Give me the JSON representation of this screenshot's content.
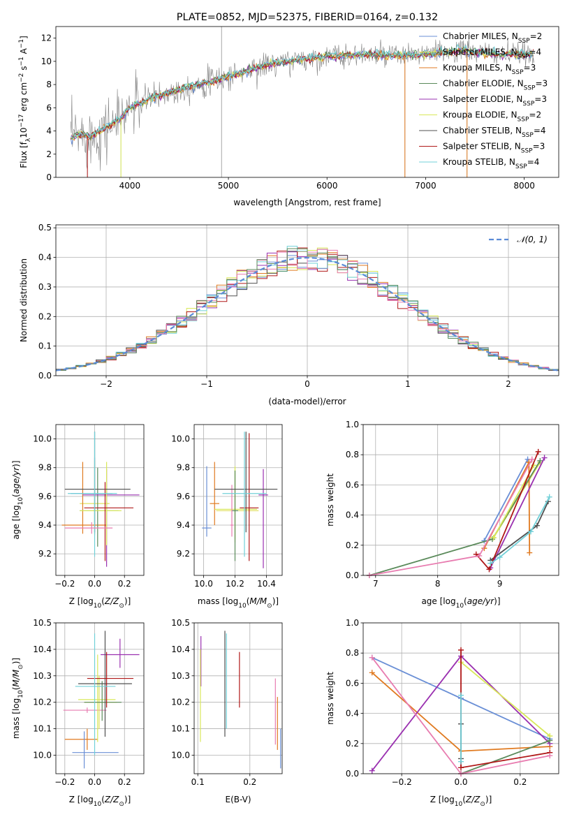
{
  "page_title": "PLATE=0852, MJD=52375, FIBERID=0164, z=0.132",
  "colors": {
    "Chabrier MILES": "#6a8fd6",
    "Salpeter MILES": "#e0e060",
    "Kroupa MILES": "#e07a20",
    "Chabrier ELODIE": "#5a8a5a",
    "Salpeter ELODIE": "#9a30b0",
    "Kroupa ELODIE": "#d8e858",
    "Chabrier STELIB": "#505050",
    "Salpeter STELIB": "#b01818",
    "Kroupa STELIB": "#70d0d8",
    "pink": "#e87cb0",
    "gray_spectrum": "#808080",
    "normal_curve": "#5b8bd6"
  },
  "chart_data": [
    {
      "id": "spectrum",
      "type": "line",
      "title": "PLATE=0852, MJD=52375, FIBERID=0164, z=0.132",
      "xlabel": "wavelength [Angstrom, rest frame]",
      "ylabel": "Flux [f_λ 10^-17 erg cm^-2 s^-1 A^-1]",
      "xlim": [
        3250,
        8350
      ],
      "ylim": [
        0,
        13
      ],
      "xticks": [
        4000,
        5000,
        6000,
        7000,
        8000
      ],
      "yticks": [
        0,
        2,
        4,
        6,
        8,
        10,
        12
      ],
      "grid": false,
      "legend_position": "top-right",
      "legend": [
        "Chabrier MILES, N_SSP=2",
        "Salpeter MILES, N_SSP=4",
        "Kroupa MILES, N_SSP=3",
        "Chabrier ELODIE, N_SSP=3",
        "Salpeter ELODIE, N_SSP=3",
        "Kroupa ELODIE, N_SSP=2",
        "Chabrier STELIB, N_SSP=4",
        "Salpeter STELIB, N_SSP=3",
        "Kroupa STELIB, N_SSP=4"
      ],
      "continuum": {
        "x": [
          3400,
          3500,
          3600,
          3700,
          3800,
          3900,
          4000,
          4200,
          4400,
          4600,
          4800,
          5000,
          5200,
          5400,
          5600,
          5800,
          6000,
          6200,
          6400,
          6600,
          6800,
          7000,
          7200,
          7400,
          7600,
          7800,
          8000,
          8100
        ],
        "y": [
          3.4,
          3.7,
          3.5,
          4.0,
          4.5,
          5.0,
          6.0,
          6.8,
          7.3,
          7.8,
          8.2,
          8.7,
          9.2,
          9.7,
          10.0,
          10.2,
          10.4,
          10.5,
          10.6,
          10.5,
          10.5,
          10.6,
          10.8,
          10.9,
          10.7,
          10.6,
          10.6,
          10.5
        ]
      }
    },
    {
      "id": "residuals",
      "type": "histogram",
      "xlabel": "(data-model)/error",
      "ylabel": "Normed distribution",
      "xlim": [
        -2.5,
        2.5
      ],
      "ylim": [
        0,
        0.51
      ],
      "xticks": [
        -2,
        -1,
        0,
        1,
        2
      ],
      "yticks": [
        0.0,
        0.1,
        0.2,
        0.3,
        0.4,
        0.5
      ],
      "grid": true,
      "legend_position": "top-right",
      "legend": [
        "𝒩(0, 1)"
      ],
      "bin_width": 0.1
    },
    {
      "id": "age_vs_Z",
      "type": "errorbar",
      "xlabel": "Z [log10(Z/Z⊙)]",
      "ylabel": "age [log10(age/yr)]",
      "xlim": [
        -0.26,
        0.33
      ],
      "ylim": [
        9.05,
        10.1
      ],
      "xticks": [
        -0.2,
        0.0,
        0.2
      ],
      "yticks": [
        9.2,
        9.4,
        9.6,
        9.8,
        10.0
      ],
      "grid": true,
      "points": [
        {
          "model": "Chabrier MILES",
          "x": 0.0,
          "xerr": [
            0.16,
            0.12
          ],
          "y": 9.62,
          "yerr": [
            0.28,
            0.25
          ]
        },
        {
          "model": "Salpeter MILES",
          "x": 0.0,
          "xerr": [
            0.1,
            0.1
          ],
          "y": 9.55,
          "yerr": [
            0.22,
            0.3
          ]
        },
        {
          "model": "Kroupa MILES",
          "x": -0.08,
          "xerr": [
            0.14,
            0.16
          ],
          "y": 9.4,
          "yerr": [
            0.06,
            0.44
          ]
        },
        {
          "model": "Chabrier ELODIE",
          "x": 0.02,
          "xerr": [
            0.12,
            0.14
          ],
          "y": 9.5,
          "yerr": [
            0.25,
            0.3
          ]
        },
        {
          "model": "Salpeter ELODIE",
          "x": 0.08,
          "xerr": [
            0.16,
            0.22
          ],
          "y": 9.61,
          "yerr": [
            0.5,
            0.18
          ]
        },
        {
          "model": "Kroupa ELODIE",
          "x": 0.08,
          "xerr": [
            0.18,
            0.1
          ],
          "y": 9.5,
          "yerr": [
            0.24,
            0.34
          ]
        },
        {
          "model": "Chabrier STELIB",
          "x": 0.0,
          "xerr": [
            0.2,
            0.24
          ],
          "y": 9.65,
          "yerr": [
            0.3,
            0.4
          ]
        },
        {
          "model": "Salpeter STELIB",
          "x": 0.07,
          "xerr": [
            0.14,
            0.19
          ],
          "y": 9.52,
          "yerr": [
            0.37,
            0.18
          ]
        },
        {
          "model": "Kroupa STELIB",
          "x": 0.0,
          "xerr": [
            0.18,
            0.15
          ],
          "y": 9.62,
          "yerr": [
            0.44,
            0.43
          ]
        },
        {
          "model": "pink",
          "x": -0.02,
          "xerr": [
            0.18,
            0.14
          ],
          "y": 9.38,
          "yerr": [
            0.04,
            0.04
          ]
        }
      ]
    },
    {
      "id": "age_vs_mass",
      "type": "errorbar",
      "xlabel": "mass [log10(M/M⊙)]",
      "ylabel": "",
      "xlim": [
        9.94,
        10.5
      ],
      "ylim": [
        9.05,
        10.1
      ],
      "xticks": [
        10.0,
        10.2,
        10.4
      ],
      "yticks": [
        9.2,
        9.4,
        9.6,
        9.8,
        10.0
      ],
      "grid": true,
      "points": [
        {
          "model": "Chabrier MILES",
          "x": 10.02,
          "xerr": [
            0.03,
            0.03
          ],
          "y": 9.38,
          "yerr": [
            0.06,
            0.43
          ]
        },
        {
          "model": "Kroupa MILES",
          "x": 10.07,
          "xerr": [
            0.03,
            0.03
          ],
          "y": 9.55,
          "yerr": [
            0.15,
            0.29
          ]
        },
        {
          "model": "Salpeter MILES",
          "x": 10.2,
          "xerr": [
            0.12,
            0.15
          ],
          "y": 9.5,
          "yerr": [
            0.22,
            0.3
          ]
        },
        {
          "model": "Kroupa ELODIE",
          "x": 10.2,
          "xerr": [
            0.13,
            0.14
          ],
          "y": 9.51,
          "yerr": [
            0.21,
            0.3
          ]
        },
        {
          "model": "Chabrier ELODIE",
          "x": 10.2,
          "xerr": [
            0.02,
            0.02
          ],
          "y": 9.5,
          "yerr": [
            0.35,
            0.28
          ]
        },
        {
          "model": "pink",
          "x": 10.18,
          "xerr": [
            0.01,
            0.01
          ],
          "y": 9.4,
          "yerr": [
            0.08,
            0.28
          ]
        },
        {
          "model": "Salpeter ELODIE",
          "x": 10.38,
          "xerr": [
            0.03,
            0.03
          ],
          "y": 9.61,
          "yerr": [
            0.51,
            0.18
          ]
        },
        {
          "model": "Chabrier STELIB",
          "x": 10.27,
          "xerr": [
            0.2,
            0.2
          ],
          "y": 9.65,
          "yerr": [
            0.3,
            0.4
          ]
        },
        {
          "model": "Salpeter STELIB",
          "x": 10.29,
          "xerr": [
            0.06,
            0.06
          ],
          "y": 9.52,
          "yerr": [
            0.37,
            0.52
          ]
        },
        {
          "model": "Kroupa STELIB",
          "x": 10.26,
          "xerr": [
            0.14,
            0.14
          ],
          "y": 9.62,
          "yerr": [
            0.44,
            0.43
          ]
        }
      ]
    },
    {
      "id": "weight_vs_age",
      "type": "line",
      "xlabel": "age [log10(age/yr)]",
      "ylabel": "mass weight",
      "xlim": [
        6.8,
        9.95
      ],
      "ylim": [
        0,
        1.0
      ],
      "xticks": [
        7,
        8,
        9
      ],
      "yticks": [
        0.0,
        0.2,
        0.4,
        0.6,
        0.8,
        1.0
      ],
      "grid": true,
      "series": [
        {
          "model": "Chabrier MILES",
          "x": [
            8.75,
            9.45
          ],
          "y": [
            0.23,
            0.77
          ]
        },
        {
          "model": "Salpeter MILES",
          "x": [
            8.9,
            9.65
          ],
          "y": [
            0.25,
            0.75
          ]
        },
        {
          "model": "Kroupa MILES",
          "x": [
            8.75,
            9.47,
            9.48
          ],
          "y": [
            0.18,
            0.75,
            0.15
          ]
        },
        {
          "model": "Chabrier ELODIE",
          "x": [
            6.9,
            8.88,
            9.65
          ],
          "y": [
            0.0,
            0.24,
            0.76
          ]
        },
        {
          "model": "Salpeter ELODIE",
          "x": [
            8.85,
            9.72
          ],
          "y": [
            0.05,
            0.78
          ]
        },
        {
          "model": "Kroupa ELODIE",
          "x": [
            8.9,
            9.55
          ],
          "y": [
            0.25,
            0.73
          ]
        },
        {
          "model": "Chabrier STELIB",
          "x": [
            8.85,
            9.6,
            9.78
          ],
          "y": [
            0.1,
            0.33,
            0.49
          ]
        },
        {
          "model": "Salpeter STELIB",
          "x": [
            8.62,
            8.83,
            9.62
          ],
          "y": [
            0.14,
            0.04,
            0.82
          ]
        },
        {
          "model": "Kroupa STELIB",
          "x": [
            8.85,
            9.0,
            9.5,
            9.8
          ],
          "y": [
            0.08,
            0.12,
            0.29,
            0.52
          ]
        },
        {
          "model": "pink",
          "x": [
            6.9,
            8.67,
            9.52
          ],
          "y": [
            0.0,
            0.13,
            0.77
          ]
        }
      ]
    },
    {
      "id": "mass_vs_Z",
      "type": "errorbar",
      "xlabel": "Z [log10(Z/Z⊙)]",
      "ylabel": "mass [log10(M/M⊙)]",
      "xlim": [
        -0.26,
        0.33
      ],
      "ylim": [
        9.93,
        10.5
      ],
      "xticks": [
        -0.2,
        0.0,
        0.2
      ],
      "yticks": [
        10.0,
        10.1,
        10.2,
        10.3,
        10.4,
        10.5
      ],
      "grid": true,
      "points": [
        {
          "model": "Kroupa MILES",
          "x": -0.05,
          "xerr": [
            0.15,
            0.07
          ],
          "y": 10.06,
          "yerr": [
            0.04,
            0.04
          ]
        },
        {
          "model": "Chabrier MILES",
          "x": -0.07,
          "xerr": [
            0.08,
            0.23
          ],
          "y": 10.01,
          "yerr": [
            0.06,
            0.08
          ]
        },
        {
          "model": "pink",
          "x": -0.05,
          "xerr": [
            0.16,
            0.13
          ],
          "y": 10.17,
          "yerr": [
            0.01,
            0.01
          ]
        },
        {
          "model": "Salpeter MILES",
          "x": 0.03,
          "xerr": [
            0.1,
            0.12
          ],
          "y": 10.2,
          "yerr": [
            0.1,
            0.1
          ]
        },
        {
          "model": "Kroupa ELODIE",
          "x": 0.02,
          "xerr": [
            0.13,
            0.12
          ],
          "y": 10.21,
          "yerr": [
            0.16,
            0.17
          ]
        },
        {
          "model": "Chabrier ELODIE",
          "x": 0.05,
          "xerr": [
            0.12,
            0.13
          ],
          "y": 10.2,
          "yerr": [
            0.07,
            0.08
          ]
        },
        {
          "model": "Salpeter ELODIE",
          "x": 0.17,
          "xerr": [
            0.13,
            0.13
          ],
          "y": 10.38,
          "yerr": [
            0.05,
            0.06
          ]
        },
        {
          "model": "Chabrier STELIB",
          "x": 0.07,
          "xerr": [
            0.18,
            0.18
          ],
          "y": 10.27,
          "yerr": [
            0.2,
            0.2
          ]
        },
        {
          "model": "Salpeter STELIB",
          "x": 0.08,
          "xerr": [
            0.13,
            0.18
          ],
          "y": 10.29,
          "yerr": [
            0.11,
            0.1
          ]
        },
        {
          "model": "Kroupa STELIB",
          "x": 0.0,
          "xerr": [
            0.13,
            0.14
          ],
          "y": 10.26,
          "yerr": [
            0.26,
            0.2
          ]
        }
      ]
    },
    {
      "id": "mass_vs_EBV",
      "type": "errorbar",
      "xlabel": "E(B-V)",
      "ylabel": "",
      "xlim": [
        0.093,
        0.262
      ],
      "ylim": [
        9.93,
        10.5
      ],
      "xticks": [
        0.1,
        0.2
      ],
      "yticks": [
        10.0,
        10.1,
        10.2,
        10.3,
        10.4,
        10.5
      ],
      "grid": true,
      "points": [
        {
          "model": "Salpeter ELODIE",
          "x": 0.106,
          "y": 10.36,
          "yerr": [
            0.1,
            0.09
          ]
        },
        {
          "model": "Kroupa ELODIE",
          "x": 0.105,
          "y": 10.21,
          "yerr": [
            0.16,
            0.19
          ]
        },
        {
          "model": "Chabrier STELIB",
          "x": 0.152,
          "y": 10.27,
          "yerr": [
            0.2,
            0.2
          ]
        },
        {
          "model": "Kroupa STELIB",
          "x": 0.155,
          "y": 10.26,
          "yerr": [
            0.16,
            0.2
          ]
        },
        {
          "model": "Salpeter STELIB",
          "x": 0.18,
          "y": 10.29,
          "yerr": [
            0.11,
            0.1
          ]
        },
        {
          "model": "pink",
          "x": 0.249,
          "y": 10.17,
          "yerr": [
            0.13,
            0.12
          ]
        },
        {
          "model": "Kroupa MILES",
          "x": 0.253,
          "y": 10.12,
          "yerr": [
            0.1,
            0.1
          ]
        },
        {
          "model": "Chabrier MILES",
          "x": 0.259,
          "y": 10.03,
          "yerr": [
            0.08,
            0.07
          ]
        }
      ]
    },
    {
      "id": "weight_vs_Z",
      "type": "line",
      "xlabel": "Z [log10(Z/Z⊙)]",
      "ylabel": "mass weight",
      "xlim": [
        -0.33,
        0.33
      ],
      "ylim": [
        0,
        1.0
      ],
      "xticks": [
        -0.2,
        0.0,
        0.2
      ],
      "yticks": [
        0.0,
        0.2,
        0.4,
        0.6,
        0.8,
        1.0
      ],
      "grid": true,
      "series": [
        {
          "model": "Chabrier MILES",
          "x": [
            -0.3,
            0.0,
            0.3
          ],
          "y": [
            0.77,
            0.5,
            0.23
          ]
        },
        {
          "model": "Kroupa MILES",
          "x": [
            -0.3,
            0.0,
            0.3
          ],
          "y": [
            0.67,
            0.15,
            0.18
          ]
        },
        {
          "model": "Salpeter ELODIE",
          "x": [
            -0.3,
            0.0,
            0.3
          ],
          "y": [
            0.02,
            0.78,
            0.2
          ]
        },
        {
          "model": "Kroupa ELODIE",
          "x": [
            0.0,
            0.3
          ],
          "y": [
            0.74,
            0.25
          ]
        },
        {
          "model": "Chabrier ELODIE",
          "x": [
            0.0,
            0.3
          ],
          "y": [
            0.0,
            0.22
          ]
        },
        {
          "model": "Salpeter STELIB",
          "x": [
            0.0,
            0.0,
            0.3
          ],
          "y": [
            0.82,
            0.04,
            0.14
          ]
        },
        {
          "model": "Chabrier STELIB",
          "x": [
            0.0,
            0.0
          ],
          "y": [
            0.33,
            0.1
          ]
        },
        {
          "model": "Kroupa STELIB",
          "x": [
            0.0,
            0.0
          ],
          "y": [
            0.52,
            0.08
          ]
        },
        {
          "model": "pink",
          "x": [
            -0.3,
            0.0,
            0.3
          ],
          "y": [
            0.77,
            0.0,
            0.12
          ]
        }
      ]
    }
  ]
}
